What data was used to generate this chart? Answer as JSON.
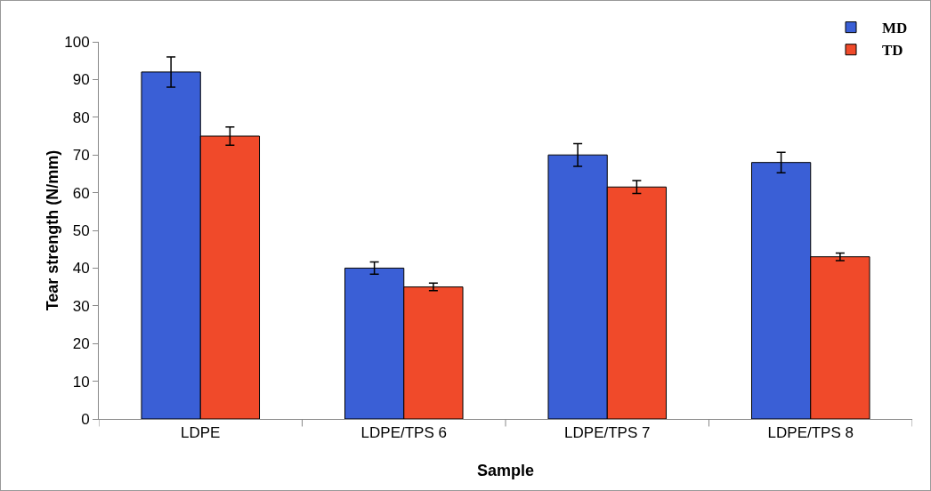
{
  "chart_data": {
    "type": "bar",
    "xlabel": "Sample",
    "ylabel": "Tear strength (N/mm)",
    "categories": [
      "LDPE",
      "LDPE/TPS 6",
      "LDPE/TPS 7",
      "LDPE/TPS 8"
    ],
    "series": [
      {
        "name": "MD",
        "color": "#3a5fd6",
        "values": [
          92,
          40,
          70,
          68
        ],
        "errors": [
          4,
          1.6,
          3,
          2.7
        ]
      },
      {
        "name": "TD",
        "color": "#f04a2a",
        "values": [
          75,
          35,
          61.5,
          43
        ],
        "errors": [
          2.4,
          1,
          1.7,
          1
        ]
      }
    ],
    "ylim": [
      0,
      100
    ],
    "yticks": [
      0,
      10,
      20,
      30,
      40,
      50,
      60,
      70,
      80,
      90,
      100
    ],
    "grid": false,
    "legend": "top right"
  }
}
